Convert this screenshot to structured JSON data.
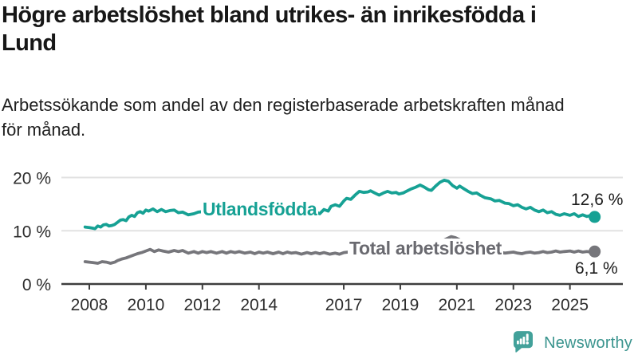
{
  "header": {
    "title": "Högre arbetslöshet bland utrikes- än inrikesfödda i\nLund",
    "subtitle": "Arbetssökande som andel av den registerbaserade arbetskraften månad\nför månad."
  },
  "chart_data": {
    "type": "line",
    "unit": "percent of registered labour force",
    "grid": true,
    "y_axis": {
      "ticks": [
        0,
        10,
        20
      ],
      "tick_labels": [
        "0 %",
        "10 %",
        "20 %"
      ],
      "range": [
        0,
        21.7
      ]
    },
    "x_axis": {
      "ticks": [
        2008,
        2010,
        2012,
        2014,
        2017,
        2019,
        2021,
        2023,
        2025
      ],
      "range_years": [
        2007.0,
        2026.9
      ]
    },
    "series": [
      {
        "name": "Utlandsfödda",
        "color": "#16a194",
        "label_color": "#16a194",
        "end_label": "12,6 %",
        "end_value": 12.6,
        "points": [
          [
            2007.85,
            10.7
          ],
          [
            2008.0,
            10.6
          ],
          [
            2008.1,
            10.5
          ],
          [
            2008.2,
            10.4
          ],
          [
            2008.3,
            10.9
          ],
          [
            2008.4,
            10.7
          ],
          [
            2008.5,
            11.1
          ],
          [
            2008.6,
            11.2
          ],
          [
            2008.7,
            10.9
          ],
          [
            2008.8,
            11.0
          ],
          [
            2008.9,
            11.2
          ],
          [
            2009.0,
            11.6
          ],
          [
            2009.1,
            12.0
          ],
          [
            2009.2,
            12.1
          ],
          [
            2009.3,
            11.9
          ],
          [
            2009.4,
            12.6
          ],
          [
            2009.5,
            12.9
          ],
          [
            2009.6,
            12.7
          ],
          [
            2009.7,
            13.4
          ],
          [
            2009.8,
            13.6
          ],
          [
            2009.9,
            13.3
          ],
          [
            2010.0,
            13.9
          ],
          [
            2010.1,
            13.7
          ],
          [
            2010.25,
            14.1
          ],
          [
            2010.4,
            13.6
          ],
          [
            2010.55,
            14.0
          ],
          [
            2010.7,
            13.6
          ],
          [
            2010.85,
            13.8
          ],
          [
            2011.0,
            13.9
          ],
          [
            2011.15,
            13.4
          ],
          [
            2011.3,
            13.5
          ],
          [
            2011.5,
            13.0
          ],
          [
            2011.7,
            13.2
          ],
          [
            2011.85,
            13.5
          ],
          [
            2012.0,
            13.6
          ],
          [
            2012.2,
            13.7
          ],
          [
            2012.4,
            13.5
          ],
          [
            2012.6,
            13.6
          ],
          [
            2012.8,
            13.4
          ],
          [
            2013.0,
            13.6
          ],
          [
            2013.2,
            13.3
          ],
          [
            2013.4,
            13.5
          ],
          [
            2013.6,
            13.2
          ],
          [
            2013.8,
            13.4
          ],
          [
            2014.0,
            13.5
          ],
          [
            2014.2,
            13.2
          ],
          [
            2014.4,
            13.4
          ],
          [
            2014.6,
            13.1
          ],
          [
            2014.8,
            13.3
          ],
          [
            2015.0,
            13.5
          ],
          [
            2015.2,
            13.2
          ],
          [
            2015.4,
            13.4
          ],
          [
            2015.6,
            13.3
          ],
          [
            2015.8,
            13.6
          ],
          [
            2016.0,
            13.6
          ],
          [
            2016.15,
            13.2
          ],
          [
            2016.3,
            14.0
          ],
          [
            2016.45,
            13.7
          ],
          [
            2016.55,
            14.6
          ],
          [
            2016.7,
            14.9
          ],
          [
            2016.85,
            14.6
          ],
          [
            2017.0,
            15.6
          ],
          [
            2017.1,
            16.1
          ],
          [
            2017.25,
            15.9
          ],
          [
            2017.4,
            16.7
          ],
          [
            2017.55,
            17.4
          ],
          [
            2017.7,
            17.2
          ],
          [
            2017.85,
            17.3
          ],
          [
            2017.95,
            17.5
          ],
          [
            2018.1,
            17.1
          ],
          [
            2018.25,
            16.7
          ],
          [
            2018.4,
            17.1
          ],
          [
            2018.55,
            17.4
          ],
          [
            2018.7,
            17.1
          ],
          [
            2018.85,
            17.2
          ],
          [
            2018.95,
            16.9
          ],
          [
            2019.1,
            17.1
          ],
          [
            2019.25,
            17.5
          ],
          [
            2019.4,
            17.9
          ],
          [
            2019.55,
            18.2
          ],
          [
            2019.7,
            18.6
          ],
          [
            2019.85,
            18.2
          ],
          [
            2020.0,
            17.7
          ],
          [
            2020.1,
            17.6
          ],
          [
            2020.25,
            18.4
          ],
          [
            2020.4,
            19.1
          ],
          [
            2020.55,
            19.5
          ],
          [
            2020.7,
            19.3
          ],
          [
            2020.85,
            18.5
          ],
          [
            2021.0,
            18.0
          ],
          [
            2021.1,
            18.4
          ],
          [
            2021.25,
            17.9
          ],
          [
            2021.4,
            17.4
          ],
          [
            2021.55,
            17.0
          ],
          [
            2021.7,
            17.1
          ],
          [
            2021.85,
            16.6
          ],
          [
            2022.0,
            16.2
          ],
          [
            2022.2,
            16.0
          ],
          [
            2022.35,
            15.6
          ],
          [
            2022.5,
            15.7
          ],
          [
            2022.7,
            15.2
          ],
          [
            2022.85,
            15.1
          ],
          [
            2023.0,
            14.7
          ],
          [
            2023.15,
            14.9
          ],
          [
            2023.3,
            14.4
          ],
          [
            2023.45,
            14.1
          ],
          [
            2023.6,
            14.4
          ],
          [
            2023.75,
            13.9
          ],
          [
            2023.9,
            13.6
          ],
          [
            2024.05,
            13.9
          ],
          [
            2024.2,
            13.4
          ],
          [
            2024.35,
            13.6
          ],
          [
            2024.5,
            13.1
          ],
          [
            2024.65,
            12.9
          ],
          [
            2024.8,
            13.2
          ],
          [
            2025.0,
            12.9
          ],
          [
            2025.15,
            13.2
          ],
          [
            2025.3,
            12.7
          ],
          [
            2025.45,
            13.0
          ],
          [
            2025.6,
            12.7
          ],
          [
            2025.75,
            12.9
          ],
          [
            2025.875,
            12.6
          ]
        ]
      },
      {
        "name": "Total arbetslöshet",
        "color": "#76767b",
        "label_color": "#6a6a70",
        "end_label": "6,1 %",
        "end_value": 6.1,
        "points": [
          [
            2007.85,
            4.2
          ],
          [
            2008.0,
            4.1
          ],
          [
            2008.15,
            4.0
          ],
          [
            2008.3,
            3.9
          ],
          [
            2008.45,
            4.2
          ],
          [
            2008.6,
            4.1
          ],
          [
            2008.75,
            3.9
          ],
          [
            2008.9,
            4.1
          ],
          [
            2009.0,
            4.4
          ],
          [
            2009.15,
            4.7
          ],
          [
            2009.3,
            4.9
          ],
          [
            2009.5,
            5.3
          ],
          [
            2009.7,
            5.7
          ],
          [
            2009.85,
            5.9
          ],
          [
            2010.0,
            6.2
          ],
          [
            2010.15,
            6.5
          ],
          [
            2010.3,
            6.1
          ],
          [
            2010.45,
            6.4
          ],
          [
            2010.6,
            6.2
          ],
          [
            2010.8,
            6.0
          ],
          [
            2011.0,
            6.3
          ],
          [
            2011.15,
            6.1
          ],
          [
            2011.3,
            6.3
          ],
          [
            2011.5,
            5.8
          ],
          [
            2011.7,
            6.1
          ],
          [
            2011.85,
            5.8
          ],
          [
            2012.0,
            6.1
          ],
          [
            2012.15,
            5.9
          ],
          [
            2012.3,
            6.1
          ],
          [
            2012.5,
            5.8
          ],
          [
            2012.7,
            6.1
          ],
          [
            2012.85,
            5.8
          ],
          [
            2013.0,
            6.1
          ],
          [
            2013.15,
            5.9
          ],
          [
            2013.3,
            6.1
          ],
          [
            2013.5,
            5.8
          ],
          [
            2013.7,
            6.0
          ],
          [
            2013.85,
            5.7
          ],
          [
            2014.0,
            6.0
          ],
          [
            2014.15,
            5.8
          ],
          [
            2014.3,
            6.0
          ],
          [
            2014.5,
            5.7
          ],
          [
            2014.7,
            6.0
          ],
          [
            2014.85,
            5.7
          ],
          [
            2015.0,
            6.0
          ],
          [
            2015.15,
            5.8
          ],
          [
            2015.3,
            5.9
          ],
          [
            2015.5,
            5.6
          ],
          [
            2015.7,
            5.9
          ],
          [
            2015.85,
            5.7
          ],
          [
            2016.0,
            5.9
          ],
          [
            2016.15,
            5.7
          ],
          [
            2016.3,
            5.9
          ],
          [
            2016.5,
            5.6
          ],
          [
            2016.7,
            5.8
          ],
          [
            2016.85,
            5.6
          ],
          [
            2017.0,
            5.9
          ],
          [
            2017.15,
            6.0
          ],
          [
            2017.3,
            5.8
          ],
          [
            2017.5,
            5.9
          ],
          [
            2017.75,
            5.8
          ],
          [
            2018.0,
            6.0
          ],
          [
            2018.25,
            5.8
          ],
          [
            2018.5,
            5.9
          ],
          [
            2018.75,
            5.7
          ],
          [
            2019.0,
            5.9
          ],
          [
            2019.25,
            6.0
          ],
          [
            2019.5,
            6.1
          ],
          [
            2019.75,
            6.0
          ],
          [
            2020.0,
            6.2
          ],
          [
            2020.2,
            7.0
          ],
          [
            2020.4,
            7.9
          ],
          [
            2020.6,
            8.4
          ],
          [
            2020.8,
            8.9
          ],
          [
            2020.95,
            8.7
          ],
          [
            2021.1,
            8.3
          ],
          [
            2021.3,
            7.9
          ],
          [
            2021.5,
            7.5
          ],
          [
            2021.7,
            7.1
          ],
          [
            2021.9,
            6.8
          ],
          [
            2022.1,
            6.5
          ],
          [
            2022.3,
            6.2
          ],
          [
            2022.5,
            6.0
          ],
          [
            2022.7,
            5.8
          ],
          [
            2022.85,
            5.9
          ],
          [
            2023.0,
            6.0
          ],
          [
            2023.15,
            5.8
          ],
          [
            2023.3,
            5.7
          ],
          [
            2023.45,
            5.9
          ],
          [
            2023.6,
            6.0
          ],
          [
            2023.75,
            5.8
          ],
          [
            2023.9,
            5.9
          ],
          [
            2024.05,
            6.1
          ],
          [
            2024.2,
            5.9
          ],
          [
            2024.35,
            6.0
          ],
          [
            2024.5,
            6.2
          ],
          [
            2024.65,
            6.0
          ],
          [
            2024.8,
            6.1
          ],
          [
            2025.0,
            6.2
          ],
          [
            2025.15,
            6.0
          ],
          [
            2025.3,
            6.2
          ],
          [
            2025.45,
            6.0
          ],
          [
            2025.6,
            6.1
          ],
          [
            2025.75,
            6.0
          ],
          [
            2025.875,
            6.1
          ]
        ]
      }
    ]
  },
  "branding": {
    "wordmark": "Newsworthy",
    "icon": "newsworthy-speech-bubble-chart-icon",
    "icon_color": "#42a19a",
    "wordmark_color": "#3a948e"
  },
  "colors": {
    "gridline": "#e2e2e2",
    "axis": "#3d3d3d",
    "axis_text": "#2d2d2d"
  }
}
